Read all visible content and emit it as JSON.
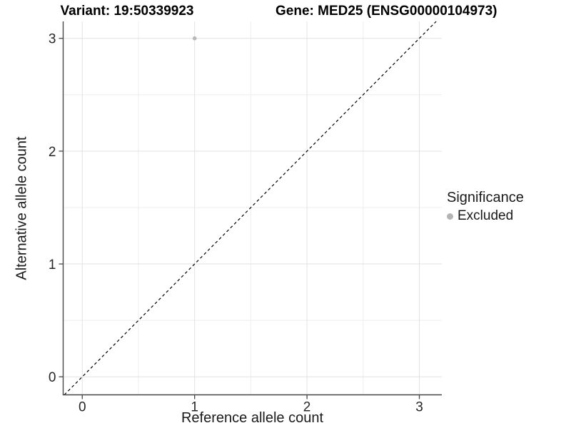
{
  "chart_data": {
    "type": "scatter",
    "title_left": "Variant: 19:50339923",
    "title_right": "Gene: MED25 (ENSG00000104973)",
    "xlabel": "Reference allele count",
    "ylabel": "Alternative allele count",
    "xlim": [
      -0.17,
      3.2
    ],
    "ylim": [
      -0.16,
      3.15
    ],
    "x_ticks": [
      0,
      1,
      2,
      3
    ],
    "y_ticks": [
      0,
      1,
      2,
      3
    ],
    "x_minor": [
      0.5,
      1.5,
      2.5
    ],
    "y_minor": [
      0.5,
      1.5,
      2.5
    ],
    "grid": "major+minor",
    "identity_line": {
      "style": "dashed",
      "color": "#000000",
      "from": [
        -0.16,
        -0.16
      ],
      "to": [
        3.15,
        3.15
      ]
    },
    "series": [
      {
        "name": "Excluded",
        "color": "#b8b8b8",
        "points": [
          {
            "x": 1,
            "y": 3
          }
        ]
      }
    ],
    "legend": {
      "title": "Significance",
      "position": "right",
      "items": [
        {
          "label": "Excluded",
          "color": "#b4b4b4"
        }
      ]
    },
    "colors": {
      "background": "#ffffff",
      "grid_major": "#e2e2e2",
      "grid_minor": "#eeeeee",
      "axis": "#474747",
      "tick_label": "#262626"
    }
  }
}
